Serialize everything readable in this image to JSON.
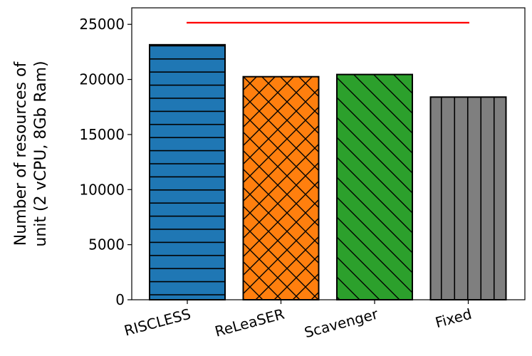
{
  "chart_data": {
    "type": "bar",
    "categories": [
      "RISCLESS",
      "ReLeaSER",
      "Scavenger",
      "Fixed"
    ],
    "values": [
      23150,
      20250,
      20450,
      18400
    ],
    "colors": [
      "#1f77b4",
      "#ff7f0e",
      "#2ca02c",
      "#7f7f7f"
    ],
    "hatches": [
      "horizontal",
      "crosshatch",
      "diagonal",
      "vertical"
    ],
    "reference_line": {
      "value": 25150,
      "color": "#ff0000"
    },
    "title": "",
    "xlabel": "",
    "ylabel_lines": [
      "Number of resources of",
      "unit (2 vCPU, 8Gb Ram)"
    ],
    "ylim": [
      0,
      26500
    ],
    "yticks": [
      0,
      5000,
      10000,
      15000,
      20000,
      25000
    ],
    "ytick_labels": [
      "0",
      "5000",
      "10000",
      "15000",
      "20000",
      "25000"
    ],
    "grid": false
  }
}
